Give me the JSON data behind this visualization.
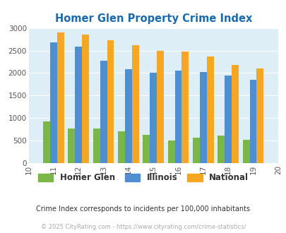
{
  "title": "Homer Glen Property Crime Index",
  "years": [
    2011,
    2012,
    2013,
    2014,
    2015,
    2016,
    2017,
    2018,
    2019
  ],
  "homer_glen": [
    925,
    775,
    775,
    700,
    625,
    500,
    560,
    615,
    510
  ],
  "illinois": [
    2675,
    2585,
    2275,
    2090,
    2000,
    2050,
    2015,
    1950,
    1855
  ],
  "national": [
    2900,
    2855,
    2735,
    2610,
    2500,
    2470,
    2365,
    2185,
    2100
  ],
  "color_homer_glen": "#7ab648",
  "color_illinois": "#4d8fd1",
  "color_national": "#f5a623",
  "bg_color": "#ddeef6",
  "xlim": [
    2010,
    2020
  ],
  "ylim": [
    0,
    3000
  ],
  "yticks": [
    0,
    500,
    1000,
    1500,
    2000,
    2500,
    3000
  ],
  "subtitle": "Crime Index corresponds to incidents per 100,000 inhabitants",
  "footer": "© 2025 CityRating.com - https://www.cityrating.com/crime-statistics/",
  "subtitle_color": "#333333",
  "footer_color": "#aaaaaa",
  "title_color": "#1a6bad",
  "legend_labels": [
    "Homer Glen",
    "Illinois",
    "National"
  ]
}
